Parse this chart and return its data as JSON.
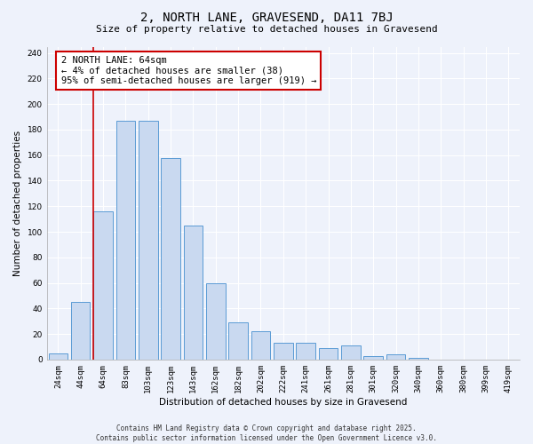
{
  "title": "2, NORTH LANE, GRAVESEND, DA11 7BJ",
  "subtitle": "Size of property relative to detached houses in Gravesend",
  "xlabel": "Distribution of detached houses by size in Gravesend",
  "ylabel": "Number of detached properties",
  "bar_labels": [
    "24sqm",
    "44sqm",
    "64sqm",
    "83sqm",
    "103sqm",
    "123sqm",
    "143sqm",
    "162sqm",
    "182sqm",
    "202sqm",
    "222sqm",
    "241sqm",
    "261sqm",
    "281sqm",
    "301sqm",
    "320sqm",
    "340sqm",
    "360sqm",
    "380sqm",
    "399sqm",
    "419sqm"
  ],
  "bar_values": [
    5,
    45,
    116,
    187,
    187,
    158,
    105,
    60,
    29,
    22,
    13,
    13,
    9,
    11,
    3,
    4,
    1,
    0,
    0,
    0,
    0
  ],
  "bar_color": "#c9d9f0",
  "bar_edge_color": "#5b9bd5",
  "vline_color": "#cc0000",
  "annotation_text": "2 NORTH LANE: 64sqm\n← 4% of detached houses are smaller (38)\n95% of semi-detached houses are larger (919) →",
  "annotation_box_color": "#ffffff",
  "annotation_box_edge_color": "#cc0000",
  "ylim": [
    0,
    245
  ],
  "yticks": [
    0,
    20,
    40,
    60,
    80,
    100,
    120,
    140,
    160,
    180,
    200,
    220,
    240
  ],
  "background_color": "#eef2fb",
  "grid_color": "#ffffff",
  "footer_line1": "Contains HM Land Registry data © Crown copyright and database right 2025.",
  "footer_line2": "Contains public sector information licensed under the Open Government Licence v3.0.",
  "title_fontsize": 10,
  "subtitle_fontsize": 8,
  "axis_label_fontsize": 7.5,
  "tick_fontsize": 6.5,
  "annotation_fontsize": 7.5,
  "footer_fontsize": 5.5
}
